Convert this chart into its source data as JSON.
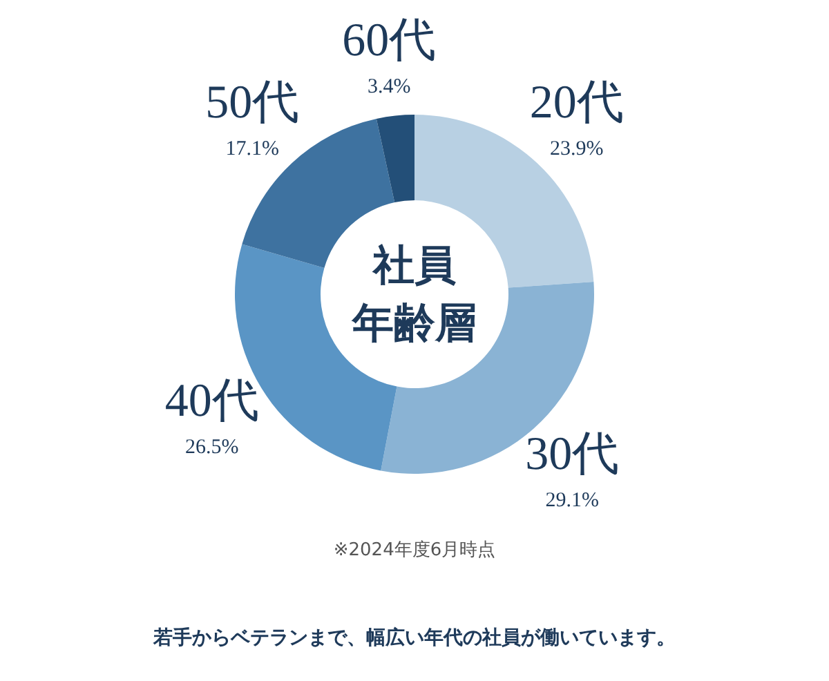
{
  "chart_data": {
    "type": "donut",
    "title": "社員年齢層",
    "categories": [
      "20代",
      "30代",
      "40代",
      "50代",
      "60代"
    ],
    "values": [
      23.9,
      29.1,
      26.5,
      17.1,
      3.4
    ],
    "value_labels": [
      "23.9%",
      "29.1%",
      "26.5%",
      "17.1%",
      "3.4%"
    ],
    "colors": [
      "#b8d0e3",
      "#8ab3d4",
      "#5a95c5",
      "#3e72a0",
      "#234f78"
    ],
    "annotations": [
      "※2024年度6月時点",
      "若手からベテランまで、幅広い年代の社員が働いています。"
    ]
  }
}
